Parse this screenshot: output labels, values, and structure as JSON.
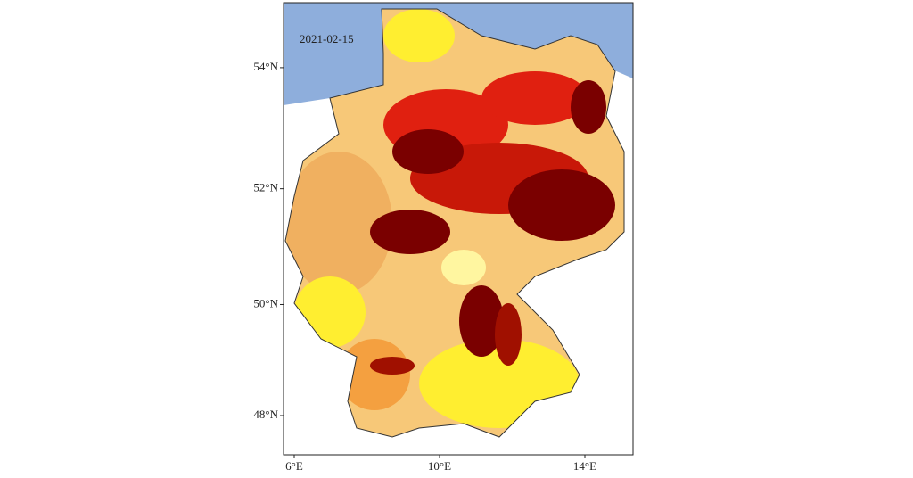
{
  "map": {
    "date_label": "2021-02-15",
    "lat_ticks": [
      {
        "value": 54,
        "label": "54°N"
      },
      {
        "value": 52,
        "label": "52°N"
      },
      {
        "value": 50,
        "label": "50°N"
      },
      {
        "value": 48,
        "label": "48°N"
      }
    ],
    "lon_ticks": [
      {
        "value": 6,
        "label": "6°E"
      },
      {
        "value": 10,
        "label": "10°E"
      },
      {
        "value": 14,
        "label": "14°E"
      }
    ]
  }
}
